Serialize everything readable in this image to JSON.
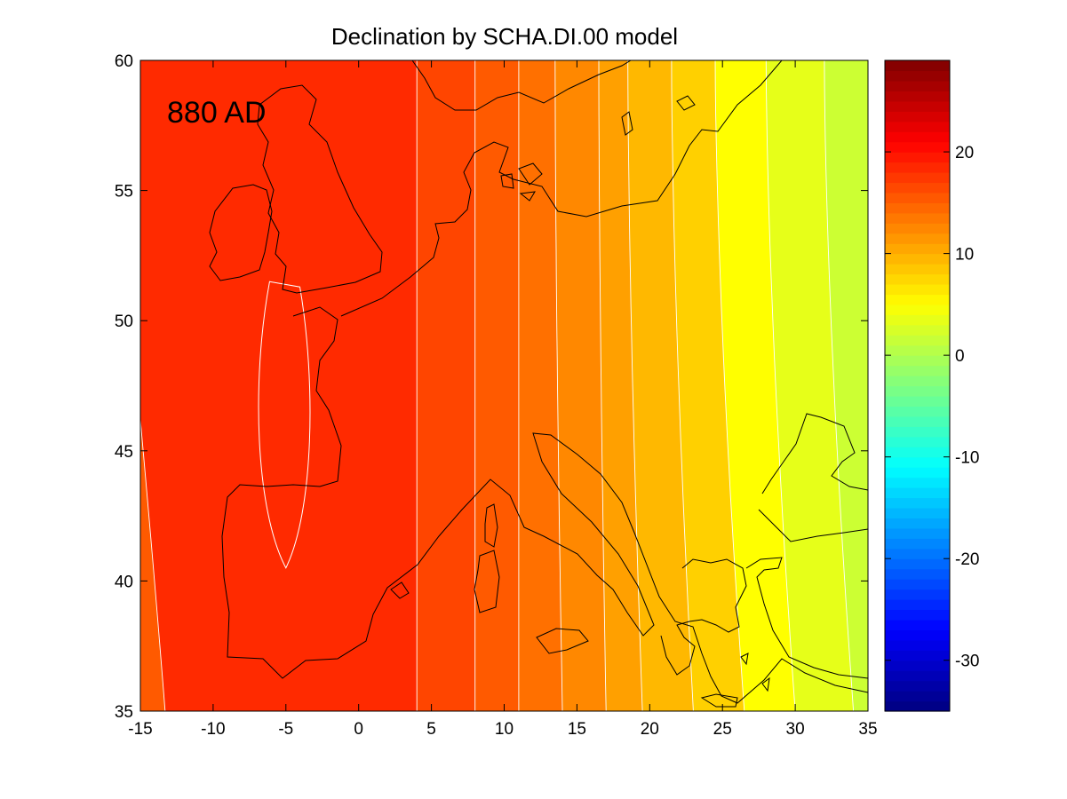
{
  "figure": {
    "title": "Declination by SCHA.DI.00 model",
    "annotation": "880 AD"
  },
  "chart_data": {
    "type": "heatmap",
    "title": "Declination by SCHA.DI.00 model",
    "annotation": "880 AD",
    "xlabel": "",
    "ylabel": "",
    "xlim": [
      -15,
      35
    ],
    "ylim": [
      35,
      60
    ],
    "x_ticks": [
      -15,
      -10,
      -5,
      0,
      5,
      10,
      15,
      20,
      25,
      30,
      35
    ],
    "y_ticks": [
      35,
      40,
      45,
      50,
      55,
      60
    ],
    "colorbar": {
      "range": [
        -35,
        29
      ],
      "ticks": [
        20,
        10,
        0,
        -10,
        -20,
        -30
      ],
      "colormap": "jet"
    },
    "contour_bands": [
      {
        "value": 19,
        "color": "#ff2a00"
      },
      {
        "value": 17,
        "color": "#ff4500"
      },
      {
        "value": 15,
        "color": "#ff5a00"
      },
      {
        "value": 13,
        "color": "#ff7000"
      },
      {
        "value": 11,
        "color": "#ff8800"
      },
      {
        "value": 9,
        "color": "#ffa000"
      },
      {
        "value": 7,
        "color": "#ffb800"
      },
      {
        "value": 5,
        "color": "#ffd000"
      },
      {
        "value": 3,
        "color": "#ffff00"
      },
      {
        "value": 1,
        "color": "#e6ff19"
      },
      {
        "value": -1,
        "color": "#ccff33"
      },
      {
        "value": -3,
        "color": "#b3ff4d"
      },
      {
        "value": -5,
        "color": "#99ff66"
      },
      {
        "value": -7,
        "color": "#80ff80"
      },
      {
        "value": -9,
        "color": "#66ff99"
      }
    ],
    "contour_boundaries_lon_at_60N": [
      -15,
      4,
      8,
      11,
      13.5,
      16.5,
      18.5,
      21.5,
      24.5,
      28,
      32,
      35
    ],
    "contour_boundaries_lon_at_35N": [
      -16,
      4,
      8,
      11,
      14,
      17,
      19.5,
      23,
      26.5,
      30,
      34,
      36
    ],
    "closed_max": {
      "center_lon": -5,
      "center_lat": 47,
      "lon_half_width": 1.6,
      "lat_min": 40.5,
      "lat_max": 51.5,
      "value": 19
    }
  }
}
